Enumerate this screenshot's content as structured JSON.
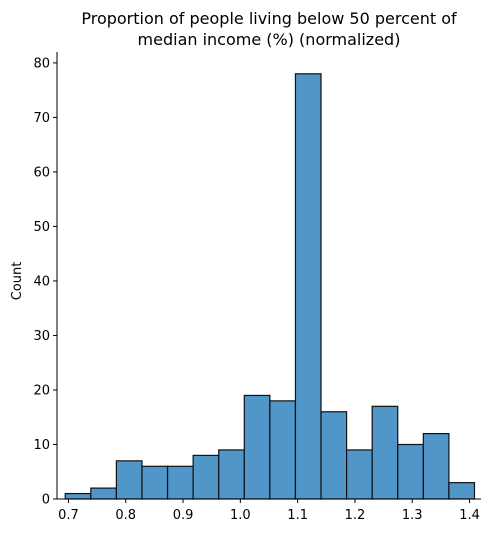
{
  "chart_data": {
    "type": "bar",
    "title_line1": "Proportion of people living below 50 percent of",
    "title_line2": "median income (%) (normalized)",
    "xlabel": "",
    "ylabel": "Count",
    "xlim": [
      0.68,
      1.42
    ],
    "ylim": [
      0,
      82
    ],
    "xticks": [
      0.7,
      0.8,
      0.9,
      1.0,
      1.1,
      1.2,
      1.3,
      1.4
    ],
    "xtick_labels": [
      "0.7",
      "0.8",
      "0.9",
      "1.0",
      "1.1",
      "1.2",
      "1.3",
      "1.4"
    ],
    "yticks": [
      0,
      10,
      20,
      30,
      40,
      50,
      60,
      70,
      80
    ],
    "ytick_labels": [
      "0",
      "10",
      "20",
      "30",
      "40",
      "50",
      "60",
      "70",
      "80"
    ],
    "bin_start": 0.6944,
    "bin_width": 0.04464,
    "values": [
      1,
      2,
      7,
      6,
      6,
      8,
      9,
      19,
      18,
      78,
      16,
      9,
      17,
      10,
      12,
      3
    ],
    "bar_color": "#5196c8",
    "edge_color": "#111111",
    "grid": false
  }
}
